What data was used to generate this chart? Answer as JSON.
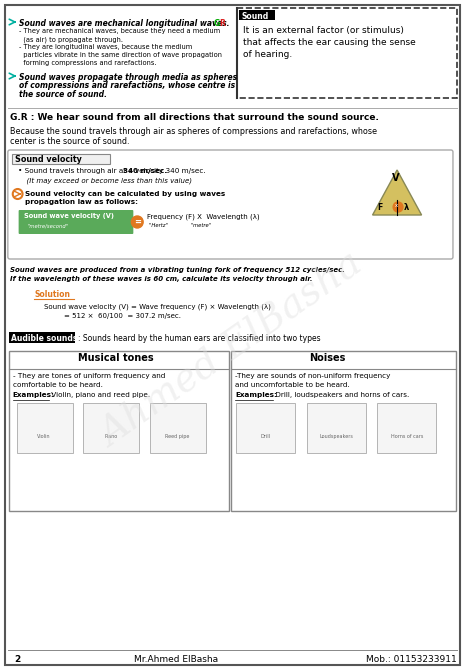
{
  "bg_color": "#ffffff",
  "border_color": "#888888",
  "title_line1": "Sound waves are mechanical longitudinal waves.",
  "bullet1_sub1": "- They are mechanical waves, because they need a medium",
  "bullet1_sub1b": "  (as air) to propagate through.",
  "bullet1_sub2": "- They are longitudinal waves, because the medium",
  "bullet1_sub2b": "  particles vibrate in the same direction of wave propagation",
  "bullet1_sub2c": "  forming compressions and rarefactions.",
  "bullet2_line1": "Sound waves propagate through media as spheres",
  "bullet2_line2": "of compressions and rarefactions, whose centre is",
  "bullet2_line3": "the source of sound.",
  "sound_box_title": "Sound",
  "sound_box_text1": "It is an external factor (or stimulus)",
  "sound_box_text2": "that affects the ear causing the sense",
  "sound_box_text3": "of hearing.",
  "gr_heading": "G.R : We hear sound from all directions that surround the sound source.",
  "gr_body1": "Because the sound travels through air as spheres of compressions and rarefactions, whose",
  "gr_body2": "center is the source of sound.",
  "sv_title": "Sound velocity",
  "sv_bullet1": "• Sound travels through air at a velocity 340 m/sec.",
  "sv_bullet1b": "  (It may exceed or become less than this value)",
  "sv_bullet2": "Sound velocity can be calculated by using waves",
  "sv_bullet2b": "propagation law as follows:",
  "formula_box_label": "Sound wave velocity (V)",
  "formula_box_sub": "\"metre/second\"",
  "formula_rhs": "Frequency (F) X  Wavelength (λ)",
  "formula_rhs_sub": "\"Hertz\"              \"metre\"",
  "italic_line1": "Sound waves are produced from a vibrating tuning fork of frequency 512 cycles/sec.",
  "italic_line2": "If the wavelength of these waves is 60 cm, calculate its velocity through air.",
  "solution_label": "Solution",
  "sol_line1": "Sound wave velocity (V) = Wave frequency (F) × Wavelength (λ)",
  "sol_line2": "= 512 ×  60/100  = 307.2 m/sec.",
  "audible_label": "Audible sounds",
  "audible_text": ": Sounds heard by the human ears are classified into two types",
  "musical_title": "Musical tones",
  "musical_body1": "- They are tones of uniform frequency and",
  "musical_body2": "comfortable to be heard.",
  "musical_examples": "Examples:",
  "musical_ex_text": " Violin, piano and reed pipe.",
  "noise_title": "Noises",
  "noise_body1": "-They are sounds of non-uniform frequency",
  "noise_body2": "and uncomfortable to be heard.",
  "noise_examples": "Examples:",
  "noise_ex_text": " Drill, loudspeakers and horns of cars.",
  "footer_page": "2",
  "footer_name": "Mr.Ahmed ElBasha",
  "footer_mob": "Mob.: 01153233911",
  "color_teal": "#00b0a0",
  "color_green": "#00aa00",
  "color_orange": "#e07820",
  "color_red": "#dd2222",
  "color_dark": "#222222",
  "color_gray": "#cccccc",
  "color_light_green_bg": "#e8f5e8",
  "color_formula_green": "#5aaa5a",
  "watermark_text": "Ahmed ElBasha",
  "watermark_color": "#dddddd"
}
